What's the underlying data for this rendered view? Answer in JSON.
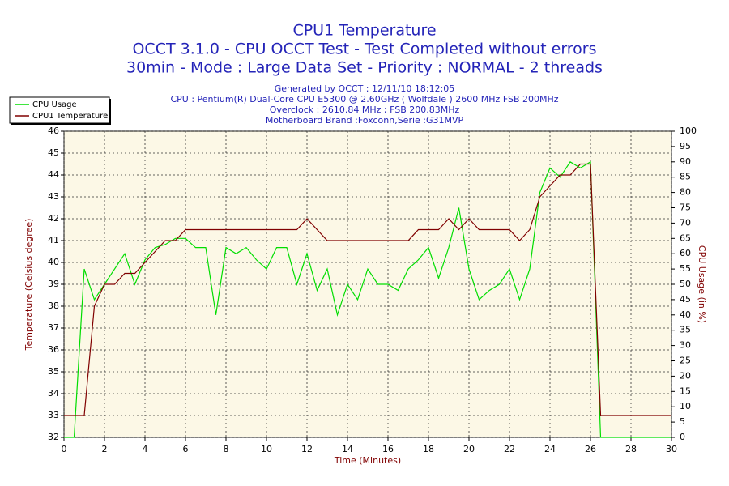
{
  "chart_data": {
    "type": "line",
    "title": "CPU1 Temperature",
    "subtitle": [
      "OCCT 3.1.0 - CPU OCCT Test - Test Completed without errors",
      "30min - Mode : Large Data Set - Priority : NORMAL - 2 threads"
    ],
    "info": [
      "Generated by OCCT : 12/11/10 18:12:05",
      "CPU : Pentium(R) Dual-Core CPU E5300 @ 2.60GHz ( Wolfdale ) 2600 MHz FSB 200MHz",
      "Overclock : 2610.84 MHz ; FSB 200.83MHz",
      "Motherboard Brand :Foxconn,Serie :G31MVP"
    ],
    "xlabel": "Time (Minutes)",
    "ylabel": "Temperature (Celsius degree)",
    "y2label": "CPU Usage (in %)",
    "x": [
      0,
      0.5,
      1,
      1.5,
      2,
      2.5,
      3,
      3.5,
      4,
      4.5,
      5,
      5.5,
      6,
      6.5,
      7,
      7.5,
      8,
      8.5,
      9,
      9.5,
      10,
      10.5,
      11,
      11.5,
      12,
      12.5,
      13,
      13.5,
      14,
      14.5,
      15,
      15.5,
      16,
      16.5,
      17,
      17.5,
      18,
      18.5,
      19,
      19.5,
      20,
      20.5,
      21,
      21.5,
      22,
      22.5,
      23,
      23.5,
      24,
      24.5,
      25,
      25.5,
      26,
      26.5,
      27,
      27.5,
      28,
      28.5,
      29,
      29.5,
      30
    ],
    "series": [
      {
        "name": "CPU Usage",
        "color": "#00dd00",
        "axis": "y2",
        "values": [
          0,
          0,
          55,
          45,
          50,
          55,
          60,
          50,
          58,
          62,
          63,
          65,
          65,
          62,
          62,
          40,
          62,
          60,
          62,
          58,
          55,
          62,
          62,
          50,
          60,
          48,
          55,
          40,
          50,
          45,
          55,
          50,
          50,
          48,
          55,
          58,
          62,
          52,
          62,
          75,
          55,
          45,
          48,
          50,
          55,
          45,
          55,
          80,
          88,
          85,
          90,
          88,
          90,
          0,
          0,
          0,
          0,
          0,
          0,
          0,
          0
        ]
      },
      {
        "name": "CPU1 Temperature",
        "color": "#800000",
        "axis": "y",
        "values": [
          33,
          33,
          33,
          38,
          39,
          39,
          39.5,
          39.5,
          40,
          40.5,
          41,
          41,
          41.5,
          41.5,
          41.5,
          41.5,
          41.5,
          41.5,
          41.5,
          41.5,
          41.5,
          41.5,
          41.5,
          41.5,
          42,
          41.5,
          41,
          41,
          41,
          41,
          41,
          41,
          41,
          41,
          41,
          41.5,
          41.5,
          41.5,
          42,
          41.5,
          42,
          41.5,
          41.5,
          41.5,
          41.5,
          41,
          41.5,
          43,
          43.5,
          44,
          44,
          44.5,
          44.5,
          33,
          33,
          33,
          33,
          33,
          33,
          33,
          33
        ]
      }
    ],
    "xlim": [
      0,
      30
    ],
    "xticks": [
      0,
      2,
      4,
      6,
      8,
      10,
      12,
      14,
      16,
      18,
      20,
      22,
      24,
      26,
      28,
      30
    ],
    "ylim": [
      32,
      46
    ],
    "yticks": [
      32,
      33,
      34,
      35,
      36,
      37,
      38,
      39,
      40,
      41,
      42,
      43,
      44,
      45,
      46
    ],
    "y2lim": [
      0,
      100
    ],
    "y2ticks": [
      0,
      5,
      10,
      15,
      20,
      25,
      30,
      35,
      40,
      45,
      50,
      55,
      60,
      65,
      70,
      75,
      80,
      85,
      90,
      95,
      100
    ],
    "grid": true,
    "legend": "top-left"
  }
}
